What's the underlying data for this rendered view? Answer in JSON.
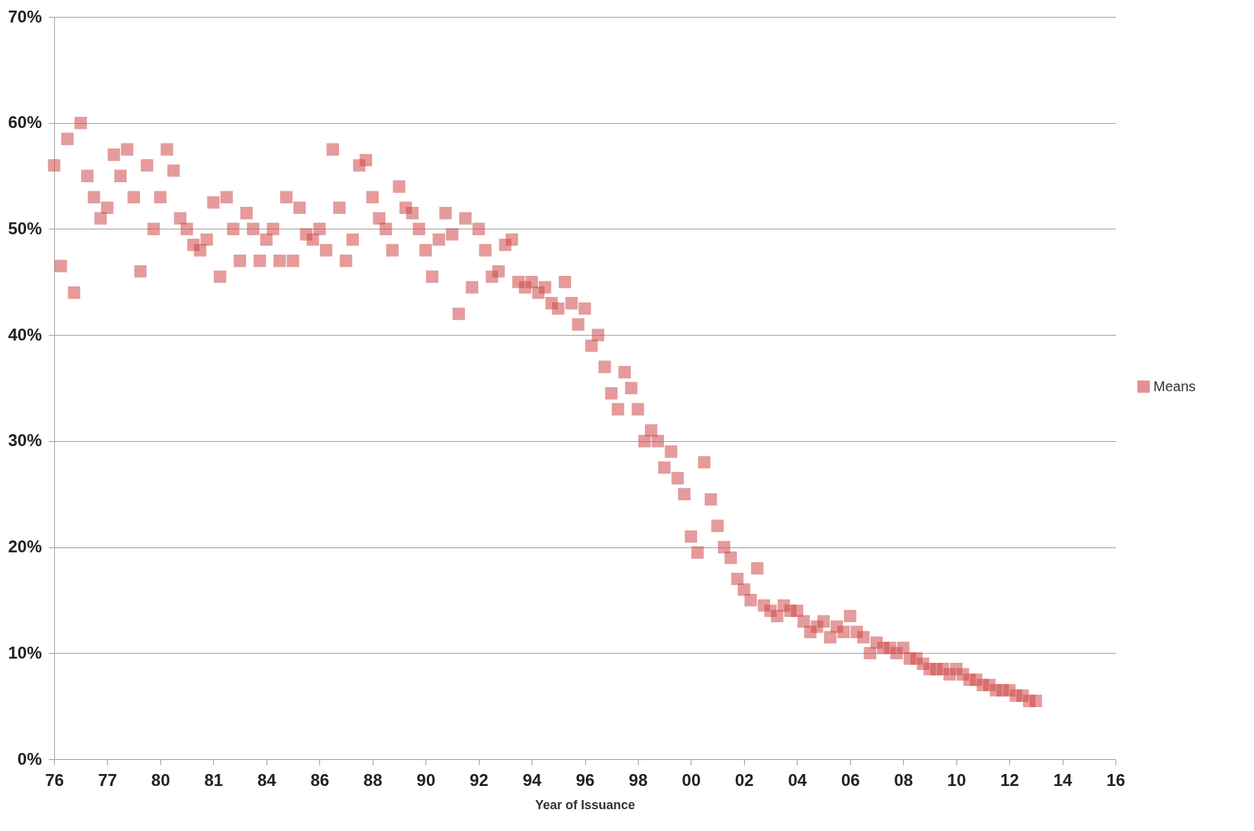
{
  "chart_data": {
    "type": "scatter",
    "xlabel": "Year of Issuance",
    "marker": "square",
    "grid": "y",
    "legend": "right",
    "categories": [
      "76",
      null,
      null,
      null,
      null,
      null,
      null,
      null,
      "77",
      null,
      null,
      null,
      null,
      null,
      null,
      null,
      "80",
      null,
      null,
      null,
      null,
      null,
      null,
      null,
      "81",
      null,
      null,
      null,
      null,
      null,
      null,
      null,
      "84",
      null,
      null,
      null,
      null,
      null,
      null,
      null,
      "86",
      null,
      null,
      null,
      null,
      null,
      null,
      null,
      "88",
      null,
      null,
      null,
      null,
      null,
      null,
      null,
      "90",
      null,
      null,
      null,
      null,
      null,
      null,
      null,
      "92",
      null,
      null,
      null,
      null,
      null,
      null,
      null,
      "94",
      null,
      null,
      null,
      null,
      null,
      null,
      null,
      "96",
      null,
      null,
      null,
      null,
      null,
      null,
      null,
      "98",
      null,
      null,
      null,
      null,
      null,
      null,
      null,
      "00",
      null,
      null,
      null,
      null,
      null,
      null,
      null,
      "02",
      null,
      null,
      null,
      null,
      null,
      null,
      null,
      "04",
      null,
      null,
      null,
      null,
      null,
      null,
      null,
      "06",
      null,
      null,
      null,
      null,
      null,
      null,
      null,
      "08",
      null,
      null,
      null,
      null,
      null,
      null,
      null,
      "10",
      null,
      null,
      null,
      null,
      null,
      null,
      null,
      "12",
      null,
      null,
      null,
      null,
      null,
      null,
      null,
      "14",
      null,
      null,
      null,
      null,
      null,
      null,
      null,
      "16"
    ],
    "ylim": [
      0,
      70
    ],
    "yticks": [
      {
        "value": 0,
        "label": "0%"
      },
      {
        "value": 10,
        "label": "10%"
      },
      {
        "value": 20,
        "label": "20%"
      },
      {
        "value": 30,
        "label": "30%"
      },
      {
        "value": 40,
        "label": "40%"
      },
      {
        "value": 50,
        "label": "50%"
      },
      {
        "value": 60,
        "label": "60%"
      },
      {
        "value": 70,
        "label": "70%"
      }
    ],
    "series": [
      {
        "name": "Means",
        "color": "#d04a4a",
        "values": [
          56,
          46.5,
          58.5,
          44,
          60,
          55,
          53,
          51,
          52,
          57,
          55,
          57.5,
          53,
          46,
          56,
          50,
          53,
          57.5,
          55.5,
          51,
          50,
          48.5,
          48,
          49,
          52.5,
          45.5,
          53,
          50,
          47,
          51.5,
          50,
          47,
          49,
          50,
          47,
          53,
          47,
          52,
          49.5,
          49,
          50,
          48,
          57.5,
          52,
          47,
          49,
          56,
          56.5,
          53,
          51,
          50,
          48,
          54,
          52,
          51.5,
          50,
          48,
          45.5,
          49,
          51.5,
          49.5,
          42,
          51,
          44.5,
          50,
          48,
          45.5,
          46,
          48.5,
          49,
          45,
          44.5,
          45,
          44,
          44.5,
          43,
          42.5,
          45,
          43,
          41,
          42.5,
          39,
          40,
          37,
          34.5,
          33,
          36.5,
          35,
          33,
          30,
          31,
          30,
          27.5,
          29,
          26.5,
          25,
          21,
          19.5,
          28,
          24.5,
          22,
          20,
          19,
          17,
          16,
          15,
          18,
          14.5,
          14,
          13.5,
          14.5,
          14,
          14,
          13,
          12,
          12.5,
          13,
          11.5,
          12.5,
          12,
          13.5,
          12,
          11.5,
          10,
          11,
          10.5,
          10.5,
          10,
          10.5,
          9.5,
          9.5,
          9,
          8.5,
          8.5,
          8.5,
          8,
          8.5,
          8,
          7.5,
          7.5,
          7,
          7,
          6.5,
          6.5,
          6.5,
          6,
          6,
          5.5,
          5.5,
          null,
          null,
          null,
          null,
          null,
          null,
          null,
          null,
          null,
          null,
          null,
          null
        ]
      }
    ]
  }
}
